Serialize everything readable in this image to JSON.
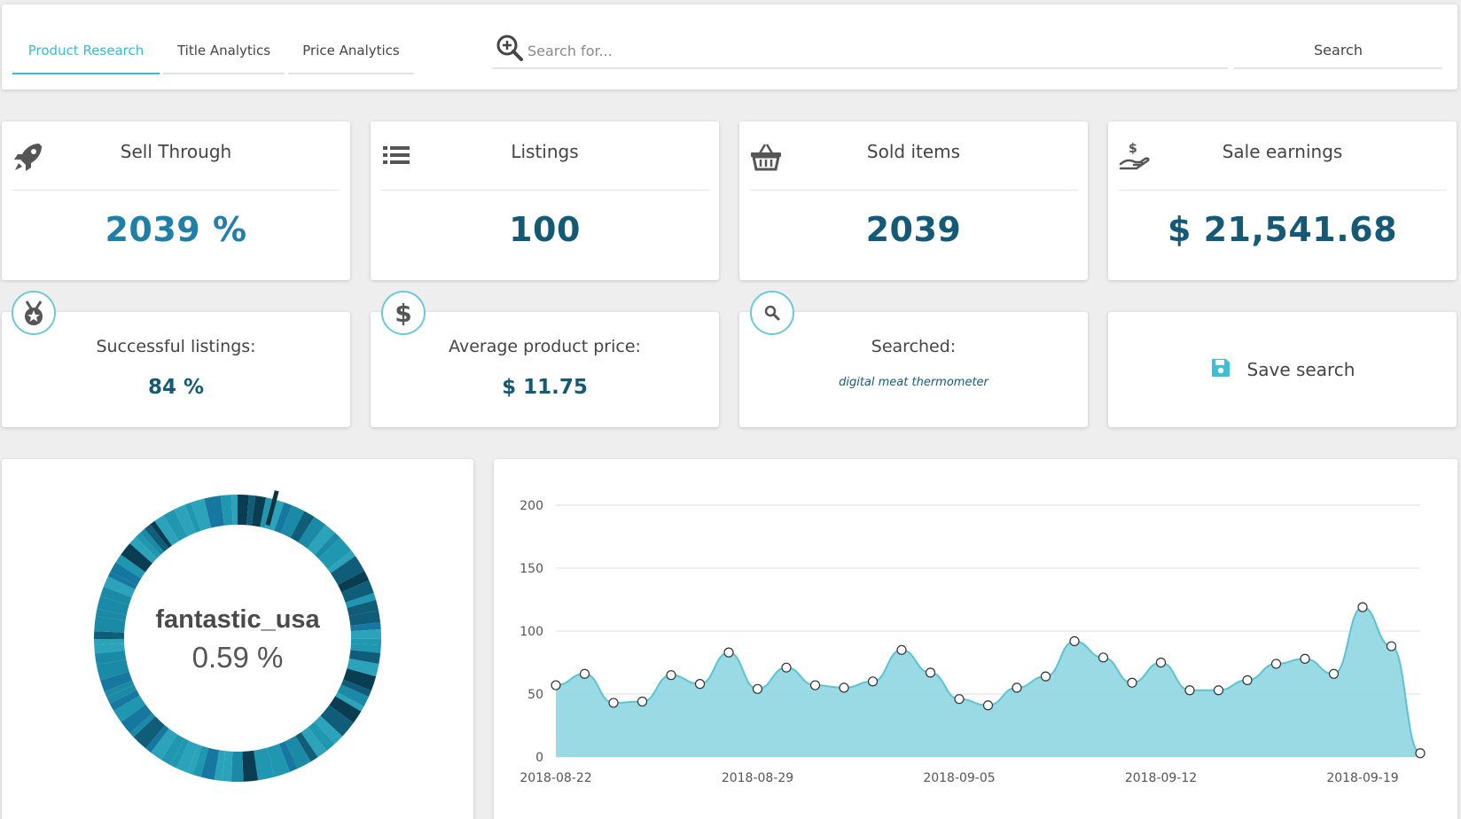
{
  "tabs": [
    {
      "label": "Product Research",
      "active": true
    },
    {
      "label": "Title Analytics",
      "active": false
    },
    {
      "label": "Price Analytics",
      "active": false
    }
  ],
  "search": {
    "placeholder": "Search for...",
    "button_label": "Search"
  },
  "stats": [
    {
      "icon": "rocket-icon",
      "title": "Sell Through",
      "value": "2039 %"
    },
    {
      "icon": "list-icon",
      "title": "Listings",
      "value": "100"
    },
    {
      "icon": "basket-icon",
      "title": "Sold items",
      "value": "2039"
    },
    {
      "icon": "hand-dollar-icon",
      "title": "Sale earnings",
      "value": "$ 21,541.68"
    }
  ],
  "info": {
    "successful": {
      "icon": "medal-icon",
      "label": "Successful listings:",
      "value": "84 %"
    },
    "average_price": {
      "icon": "dollar-icon",
      "label": "Average product price:",
      "value": "$ 11.75"
    },
    "searched": {
      "icon": "search-icon",
      "label": "Searched:",
      "value": "digital meat thermometer"
    },
    "save": {
      "icon": "floppy-icon",
      "label": "Save search"
    }
  },
  "donut": {
    "name": "fantastic_usa",
    "percent": "0.59 %"
  },
  "colors": {
    "accent": "#35bdd3",
    "value_dark": "#145a76",
    "area_fill": "#93d8e3",
    "area_stroke": "#5bc3d4"
  },
  "chart_data": {
    "type": "area",
    "x": [
      "2018-08-22",
      "2018-08-23",
      "2018-08-24",
      "2018-08-25",
      "2018-08-26",
      "2018-08-27",
      "2018-08-28",
      "2018-08-29",
      "2018-08-30",
      "2018-08-31",
      "2018-09-01",
      "2018-09-02",
      "2018-09-03",
      "2018-09-04",
      "2018-09-05",
      "2018-09-06",
      "2018-09-07",
      "2018-09-08",
      "2018-09-09",
      "2018-09-10",
      "2018-09-11",
      "2018-09-12",
      "2018-09-13",
      "2018-09-14",
      "2018-09-15",
      "2018-09-16",
      "2018-09-17",
      "2018-09-18",
      "2018-09-19",
      "2018-09-20",
      "2018-09-21"
    ],
    "values": [
      57,
      66,
      43,
      44,
      65,
      58,
      83,
      54,
      71,
      57,
      55,
      60,
      85,
      67,
      46,
      41,
      55,
      64,
      92,
      79,
      59,
      75,
      53,
      53,
      61,
      74,
      78,
      66,
      119,
      88,
      3
    ],
    "xticks": [
      "2018-08-22",
      "2018-08-29",
      "2018-09-05",
      "2018-09-12",
      "2018-09-19"
    ],
    "yticks": [
      0,
      50,
      100,
      150,
      200
    ],
    "ylim": [
      0,
      200
    ],
    "grid": true
  }
}
